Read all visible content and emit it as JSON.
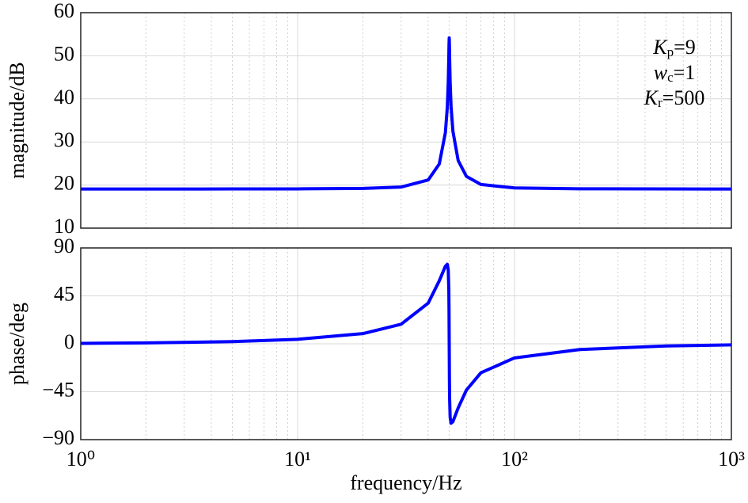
{
  "chart_data": [
    {
      "type": "line",
      "ylabel": "magnitude/dB",
      "color": "#0000ff",
      "xscale": "log",
      "grid": true,
      "x": [
        1,
        2,
        5,
        10,
        20,
        30,
        40,
        45,
        48,
        49,
        49.5,
        49.8,
        49.9,
        50,
        50.1,
        50.2,
        50.5,
        51,
        52,
        55,
        60,
        70,
        100,
        200,
        500,
        1000
      ],
      "values": [
        19.08,
        19.08,
        19.09,
        19.11,
        19.21,
        19.54,
        21.17,
        24.89,
        32.16,
        38.03,
        43.76,
        50.01,
        52.7,
        54.13,
        52.7,
        50.03,
        43.82,
        38.2,
        32.49,
        25.68,
        22.02,
        20.14,
        19.32,
        19.12,
        19.09,
        19.08
      ],
      "xlim": [
        1,
        1000
      ],
      "xticks": [
        1,
        10,
        100,
        1000
      ],
      "ylim": [
        10,
        60
      ],
      "yticks": [
        10,
        20,
        30,
        40,
        50,
        60
      ],
      "annotations": [
        {
          "symbol": "K",
          "subscript": "p",
          "text": "=9"
        },
        {
          "symbol": "w",
          "subscript": "c",
          "text": "=1"
        },
        {
          "symbol": "K",
          "subscript": "r",
          "text": "=500"
        }
      ]
    },
    {
      "type": "line",
      "ylabel": "phase/deg",
      "xlabel": "frequency/Hz",
      "color": "#0000ff",
      "xscale": "log",
      "grid": true,
      "x": [
        1,
        2,
        5,
        10,
        20,
        30,
        40,
        45,
        48,
        49,
        49.5,
        49.8,
        49.9,
        50,
        50.1,
        50.2,
        50.5,
        51,
        52,
        55,
        60,
        70,
        100,
        200,
        500,
        1000
      ],
      "values": [
        0.41,
        0.81,
        2.05,
        4.21,
        9.56,
        18.35,
        38.16,
        59.17,
        72.76,
        74.64,
        69.2,
        50.3,
        31.4,
        0,
        -31.4,
        -50.2,
        -69.1,
        -74.6,
        -73.07,
        -60.2,
        -43.5,
        -27.2,
        -13.27,
        -5.39,
        -2.05,
        -1.02
      ],
      "xlim": [
        1,
        1000
      ],
      "xticks": [
        {
          "value": 1,
          "label": "10⁰"
        },
        {
          "value": 10,
          "label": "10¹"
        },
        {
          "value": 100,
          "label": "10²"
        },
        {
          "value": 1000,
          "label": "10³"
        }
      ],
      "ylim": [
        -90,
        90
      ],
      "yticks": [
        {
          "value": -90,
          "label": "−90"
        },
        {
          "value": -45,
          "label": "−45"
        },
        0,
        45,
        90
      ]
    }
  ]
}
